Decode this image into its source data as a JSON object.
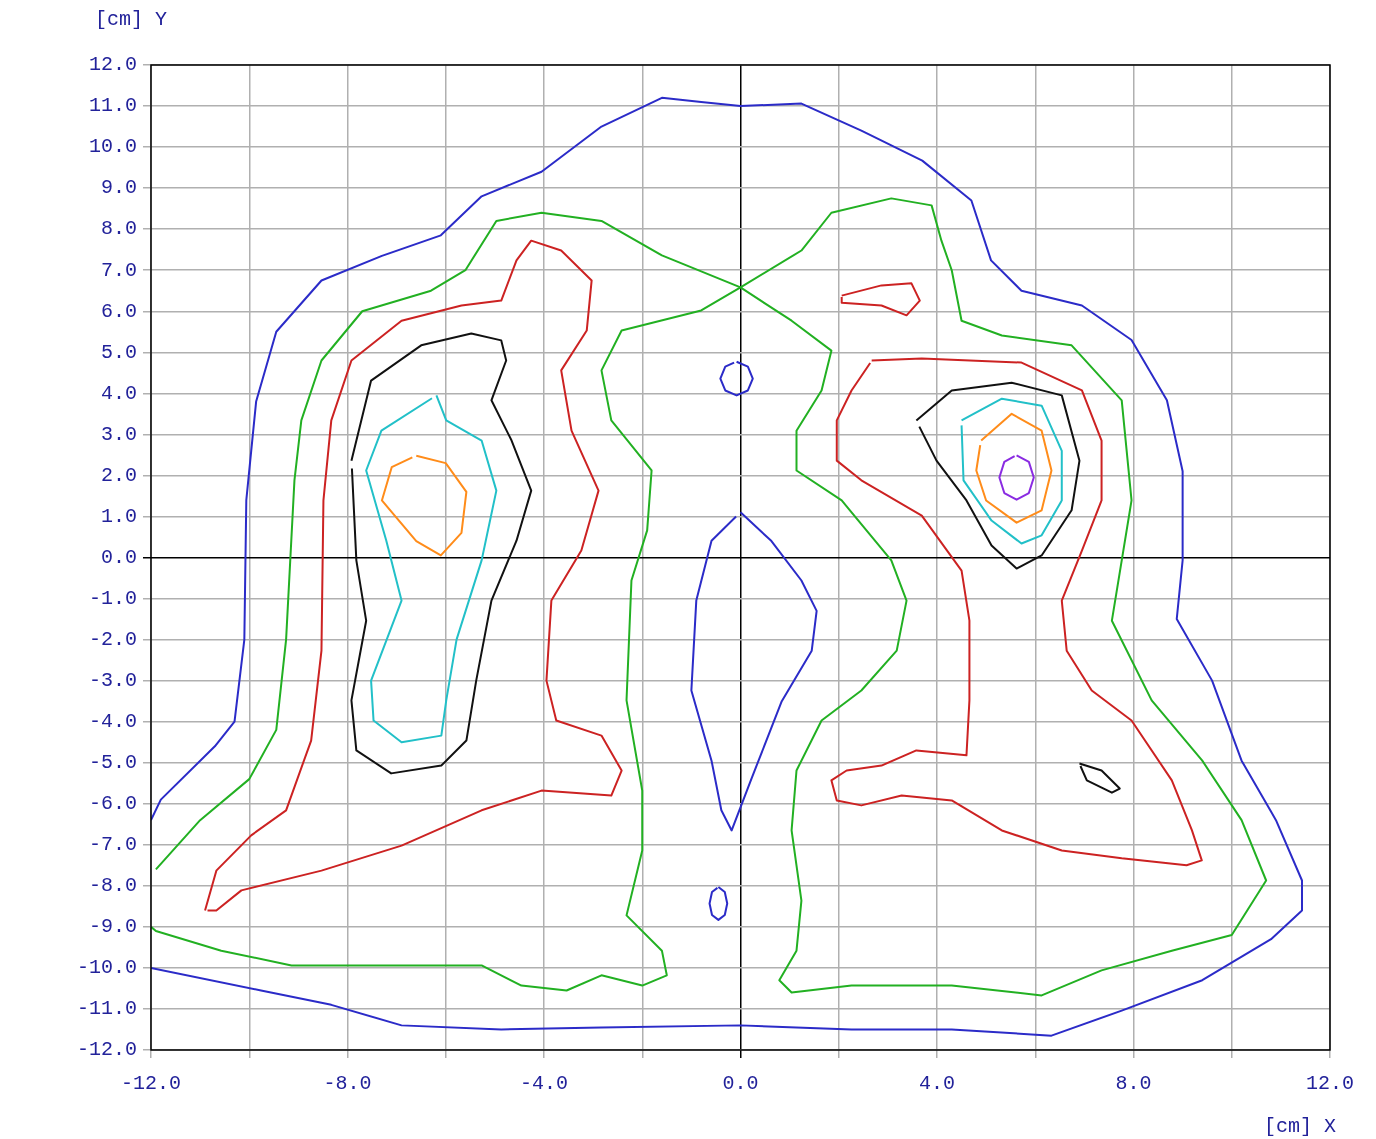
{
  "chart_data": {
    "type": "line",
    "xlabel": "[cm] X",
    "ylabel": "[cm] Y",
    "xlim": [
      -12,
      12
    ],
    "ylim": [
      -12,
      12
    ],
    "xticks": [
      {
        "value": -12,
        "label": "-12.0"
      },
      {
        "value": -10,
        "label": null
      },
      {
        "value": -8,
        "label": "-8.0"
      },
      {
        "value": -6,
        "label": null
      },
      {
        "value": -4,
        "label": "-4.0"
      },
      {
        "value": -2,
        "label": null
      },
      {
        "value": 0,
        "label": "0.0"
      },
      {
        "value": 2,
        "label": null
      },
      {
        "value": 4,
        "label": "4.0"
      },
      {
        "value": 6,
        "label": null
      },
      {
        "value": 8,
        "label": "8.0"
      },
      {
        "value": 10,
        "label": null
      },
      {
        "value": 12,
        "label": "12.0"
      }
    ],
    "yticks": [
      {
        "value": -12,
        "label": "-12.0"
      },
      {
        "value": -11,
        "label": "-11.0"
      },
      {
        "value": -10,
        "label": "-10.0"
      },
      {
        "value": -9,
        "label": "-9.0"
      },
      {
        "value": -8,
        "label": "-8.0"
      },
      {
        "value": -7,
        "label": "-7.0"
      },
      {
        "value": -6,
        "label": "-6.0"
      },
      {
        "value": -5,
        "label": "-5.0"
      },
      {
        "value": -4,
        "label": "-4.0"
      },
      {
        "value": -3,
        "label": "-3.0"
      },
      {
        "value": -2,
        "label": "-2.0"
      },
      {
        "value": -1,
        "label": "-1.0"
      },
      {
        "value": 0,
        "label": "0.0"
      },
      {
        "value": 1,
        "label": "1.0"
      },
      {
        "value": 2,
        "label": "2.0"
      },
      {
        "value": 3,
        "label": "3.0"
      },
      {
        "value": 4,
        "label": "4.0"
      },
      {
        "value": 5,
        "label": "5.0"
      },
      {
        "value": 6,
        "label": "6.0"
      },
      {
        "value": 7,
        "label": "7.0"
      },
      {
        "value": 8,
        "label": "8.0"
      },
      {
        "value": 9,
        "label": "9.0"
      },
      {
        "value": 10,
        "label": "10.0"
      },
      {
        "value": 11,
        "label": "11.0"
      },
      {
        "value": 12,
        "label": "12.0"
      }
    ],
    "grid": true,
    "legend": false,
    "marker": "none",
    "line_style": "solid",
    "series": [
      {
        "color": "#2b2bc8",
        "x": [
          -12,
          -11.8,
          -10.7,
          -10.3,
          -10.1,
          -10.06,
          -9.86,
          -9.45,
          -8.53,
          -7.3,
          -6.1,
          -5.27,
          -4.05,
          -2.83,
          -1.6,
          -0.8,
          0,
          1.24,
          2.46,
          3.7,
          4.7,
          5.1,
          5.72,
          6.95,
          7.96,
          8.68,
          9.0,
          9.0,
          8.88,
          9.6,
          10.2,
          10.9,
          11.43,
          11.43,
          10.8,
          9.4,
          7.76,
          6.33,
          4.3,
          2.26,
          0,
          -2.83,
          -4.87,
          -6.9,
          -8.33,
          -9.76,
          -12
        ],
        "values": [
          -6.4,
          -5.9,
          -4.6,
          -4.0,
          -2.0,
          1.4,
          3.8,
          5.5,
          6.75,
          7.35,
          7.85,
          8.8,
          9.4,
          10.5,
          11.2,
          11.1,
          11.0,
          11.06,
          10.4,
          9.67,
          8.7,
          7.24,
          6.5,
          6.14,
          5.3,
          3.83,
          2.1,
          -0.07,
          -1.5,
          -3.0,
          -4.95,
          -6.4,
          -7.87,
          -8.6,
          -9.3,
          -10.3,
          -11.04,
          -11.65,
          -11.5,
          -11.5,
          -11.4,
          -11.45,
          -11.5,
          -11.4,
          -10.9,
          -10.55,
          -10.0
        ]
      },
      {
        "color": "#2b2bc8",
        "x": [
          0,
          0.63,
          1.24,
          1.55,
          1.45,
          0.84,
          0.22,
          -0.18,
          -0.39,
          -0.59,
          -1.0,
          -0.9,
          -0.59,
          -0.09
        ],
        "values": [
          1.1,
          0.4,
          -0.56,
          -1.3,
          -2.27,
          -3.5,
          -5.4,
          -6.65,
          -6.16,
          -4.95,
          -3.24,
          -1.05,
          0.41,
          1.0
        ]
      },
      {
        "color": "#2b2bc8",
        "x": [
          -0.08,
          0.15,
          0.25,
          0.15,
          -0.08,
          -0.31,
          -0.41,
          -0.31,
          -0.13
        ],
        "values": [
          4.77,
          4.65,
          4.36,
          4.07,
          3.95,
          4.07,
          4.36,
          4.65,
          4.75
        ]
      },
      {
        "color": "#2b2bc8",
        "x": [
          -0.45,
          -0.32,
          -0.27,
          -0.32,
          -0.45,
          -0.58,
          -0.63,
          -0.58,
          -0.47
        ],
        "values": [
          -8.03,
          -8.15,
          -8.43,
          -8.71,
          -8.83,
          -8.71,
          -8.43,
          -8.15,
          -8.05
        ]
      },
      {
        "color": "#22b022",
        "x": [
          -11.9,
          -11,
          -10,
          -9.45,
          -9.25,
          -9.08,
          -8.94,
          -8.53,
          -7.7,
          -6.3,
          -5.6,
          -4.97,
          -4.05,
          -2.83,
          -1.6,
          0,
          1.04,
          1.85,
          1.65,
          1.14,
          1.14,
          2.06,
          3.07,
          3.38,
          3.18,
          2.46,
          1.65,
          1.14,
          1.04,
          1.24,
          1.14,
          0.79,
          1.04,
          2.26,
          4.3,
          6.13,
          7.35,
          8.78,
          10.0,
          10.7,
          10.2,
          9.4,
          8.37,
          7.56,
          7.96,
          7.76,
          6.74,
          5.32,
          4.5,
          4.3,
          4.09,
          3.89,
          3.07,
          1.85,
          1.24,
          0,
          -0.8,
          -2.42,
          -2.83,
          -2.63,
          -1.81,
          -1.9,
          -2.22,
          -2.32,
          -2.0,
          -2.0,
          -2.32,
          -1.6,
          -1.5,
          -2.0,
          -2.83,
          -3.54,
          -4.46,
          -5.27,
          -7.3,
          -9.14,
          -10.57,
          -11.9,
          -12
        ],
        "values": [
          -7.6,
          -6.4,
          -5.4,
          -4.2,
          -2.0,
          1.88,
          3.34,
          4.8,
          6.0,
          6.5,
          7.0,
          8.2,
          8.4,
          8.2,
          7.36,
          6.58,
          5.77,
          5.04,
          4.07,
          3.09,
          2.12,
          1.39,
          -0.07,
          -1.05,
          -2.27,
          -3.24,
          -3.97,
          -5.19,
          -6.65,
          -8.36,
          -9.58,
          -10.3,
          -10.6,
          -10.43,
          -10.43,
          -10.67,
          -10.06,
          -9.58,
          -9.2,
          -7.87,
          -6.4,
          -4.95,
          -3.48,
          -1.54,
          1.39,
          3.83,
          5.17,
          5.41,
          5.77,
          7.0,
          7.72,
          8.58,
          8.75,
          8.4,
          7.48,
          6.58,
          6.02,
          5.53,
          4.56,
          3.34,
          2.12,
          0.66,
          -0.56,
          -3.48,
          -5.68,
          -7.14,
          -8.72,
          -9.58,
          -10.18,
          -10.43,
          -10.18,
          -10.55,
          -10.43,
          -9.94,
          -9.94,
          -9.94,
          -9.58,
          -9.1,
          -9.0
        ]
      },
      {
        "color": "#cc2222",
        "x": [
          -10.9,
          -10.67,
          -9.96,
          -9.25,
          -8.74,
          -8.53,
          -8.49,
          -8.33,
          -7.92,
          -6.9,
          -5.68,
          -4.87,
          -4.56,
          -4.26,
          -3.65,
          -3.03,
          -3.13,
          -3.65,
          -3.44,
          -2.89,
          -3.24,
          -3.85,
          -3.95,
          -3.75,
          -2.83,
          -2.42,
          -2.63,
          -4.05,
          -5.27,
          -6.9,
          -8.53,
          -10.16,
          -10.67,
          -10.85
        ],
        "values": [
          -8.6,
          -7.63,
          -6.77,
          -6.16,
          -4.46,
          -2.27,
          1.39,
          3.34,
          4.8,
          5.77,
          6.14,
          6.26,
          7.24,
          7.72,
          7.48,
          6.75,
          5.53,
          4.56,
          3.09,
          1.63,
          0.17,
          -1.05,
          -3.0,
          -3.97,
          -4.34,
          -5.19,
          -5.8,
          -5.68,
          -6.16,
          -7.02,
          -7.63,
          -8.11,
          -8.6,
          -8.6
        ]
      },
      {
        "color": "#cc2222",
        "x": [
          2.67,
          3.69,
          5.72,
          6.95,
          7.35,
          7.35,
          6.95,
          6.54,
          6.64,
          7.15,
          7.96,
          8.78,
          9.19,
          9.39,
          9.08,
          7.76,
          6.54,
          5.32,
          4.3,
          3.28,
          2.46,
          1.96,
          1.85,
          2.16,
          2.87,
          3.58,
          4.6,
          4.66,
          4.66,
          4.5,
          3.69,
          2.46,
          1.96,
          1.96,
          2.26,
          2.64
        ],
        "values": [
          4.8,
          4.85,
          4.75,
          4.07,
          2.85,
          1.39,
          0.17,
          -1.05,
          -2.27,
          -3.24,
          -3.97,
          -5.43,
          -6.65,
          -7.38,
          -7.5,
          -7.33,
          -7.14,
          -6.65,
          -5.92,
          -5.8,
          -6.04,
          -5.92,
          -5.43,
          -5.19,
          -5.07,
          -4.7,
          -4.82,
          -3.48,
          -1.54,
          -0.32,
          1.02,
          1.88,
          2.36,
          3.34,
          4.07,
          4.74
        ]
      },
      {
        "color": "#cc2222",
        "x": [
          2.06,
          2.87,
          3.48,
          3.65,
          3.38,
          2.87,
          2.06,
          2.06
        ],
        "values": [
          6.38,
          6.63,
          6.68,
          6.26,
          5.9,
          6.14,
          6.21,
          6.35
        ]
      },
      {
        "color": "#111111",
        "x": [
          -7.92,
          -7.52,
          -6.5,
          -5.48,
          -4.87,
          -4.77,
          -5.07,
          -4.66,
          -4.26,
          -4.56,
          -5.07,
          -5.38,
          -5.58,
          -6.09,
          -7.11,
          -7.82,
          -7.92,
          -7.62,
          -7.82,
          -7.91
        ],
        "values": [
          2.36,
          4.31,
          5.17,
          5.46,
          5.29,
          4.8,
          3.83,
          2.85,
          1.63,
          0.41,
          -1.05,
          -3.0,
          -4.46,
          -5.07,
          -5.26,
          -4.7,
          -3.48,
          -1.54,
          -0.07,
          2.17
        ]
      },
      {
        "color": "#111111",
        "x": [
          3.58,
          4.3,
          5.52,
          6.54,
          6.9,
          6.74,
          6.13,
          5.62,
          5.11,
          4.6,
          3.99,
          3.64
        ],
        "values": [
          3.34,
          4.07,
          4.26,
          3.95,
          2.36,
          1.15,
          0.05,
          -0.27,
          0.29,
          1.39,
          2.36,
          3.19
        ]
      },
      {
        "color": "#111111",
        "x": [
          6.9,
          7.35,
          7.72,
          7.56,
          7.05,
          6.92
        ],
        "values": [
          -5.02,
          -5.19,
          -5.63,
          -5.73,
          -5.43,
          -5.08
        ]
      },
      {
        "color": "#22c0c8",
        "x": [
          -6.19,
          -5.99,
          -5.27,
          -4.97,
          -5.27,
          -5.78,
          -5.99,
          -6.09,
          -6.9,
          -7.47,
          -7.52,
          -6.9,
          -7.21,
          -7.62,
          -7.31,
          -6.28
        ],
        "values": [
          3.95,
          3.34,
          2.85,
          1.63,
          -0.07,
          -2.0,
          -3.48,
          -4.34,
          -4.5,
          -3.97,
          -3.0,
          -1.05,
          0.41,
          2.12,
          3.09,
          3.88
        ]
      },
      {
        "color": "#22c0c8",
        "x": [
          4.5,
          5.32,
          6.13,
          6.54,
          6.54,
          6.13,
          5.72,
          5.11,
          4.54,
          4.5
        ],
        "values": [
          3.34,
          3.87,
          3.7,
          2.6,
          1.39,
          0.54,
          0.34,
          0.9,
          1.88,
          3.22
        ]
      },
      {
        "color": "#ff8c1a",
        "x": [
          -6.6,
          -6.0,
          -5.58,
          -5.68,
          -6.1,
          -6.6,
          -7.3,
          -7.1,
          -6.68
        ],
        "values": [
          2.48,
          2.3,
          1.6,
          0.6,
          0.05,
          0.4,
          1.39,
          2.2,
          2.44
        ]
      },
      {
        "color": "#ff8c1a",
        "x": [
          4.9,
          5.52,
          6.13,
          6.33,
          6.13,
          5.62,
          5.0,
          4.8,
          4.88
        ],
        "values": [
          2.85,
          3.5,
          3.09,
          2.12,
          1.15,
          0.85,
          1.39,
          2.12,
          2.74
        ]
      },
      {
        "color": "#8a2be2",
        "x": [
          5.62,
          5.87,
          5.97,
          5.87,
          5.62,
          5.37,
          5.27,
          5.37,
          5.58
        ],
        "values": [
          2.49,
          2.33,
          1.95,
          1.57,
          1.41,
          1.57,
          1.95,
          2.33,
          2.47
        ]
      }
    ]
  }
}
